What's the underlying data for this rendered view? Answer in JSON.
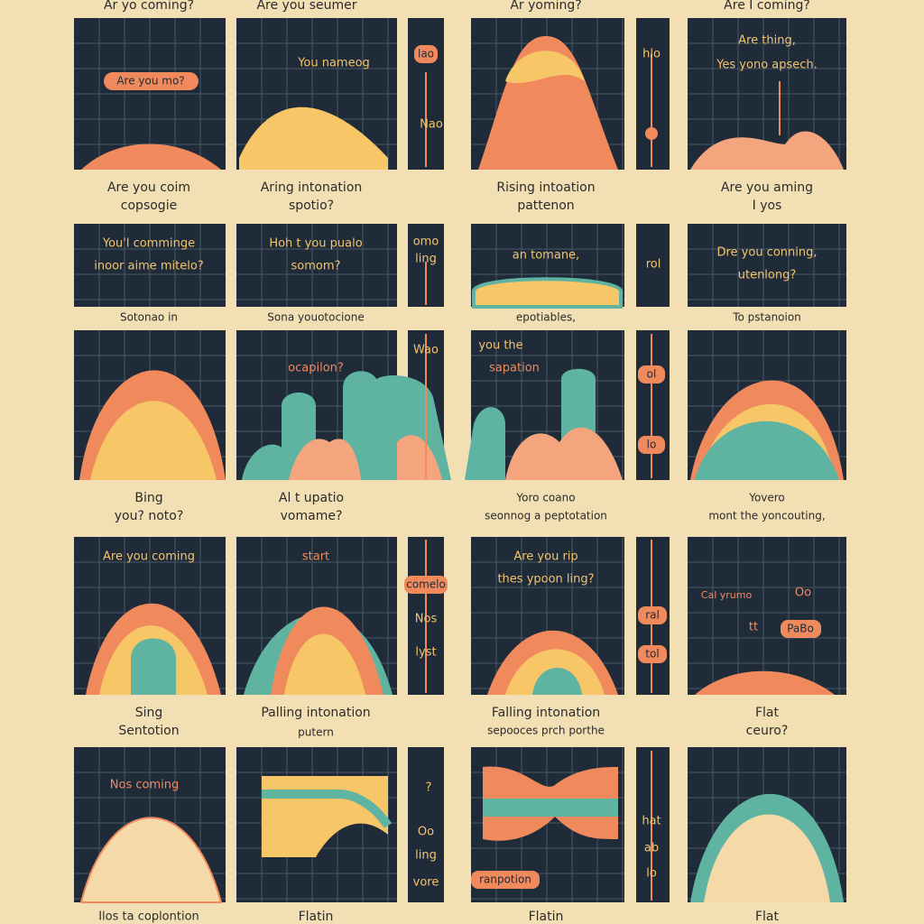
{
  "labels": [
    "Ar yo coming?",
    "Are you seumer",
    "Ar yoming?",
    "Are I coming?",
    "Are you mo?",
    "You nameog",
    "lao",
    "Nao",
    "hlo",
    "Are thing,",
    "Yes yono apsech.",
    "Are you coim",
    "copsogie",
    "Aring intonation",
    "spotio?",
    "Rising intoation",
    "pattenon",
    "Are you aming",
    "I yos",
    "You'l comminge",
    "inoor aime mitelo?",
    "Hoh t you pualo",
    "somom?",
    "omo",
    "ling",
    "an tomane,",
    "rol",
    "Dre you conning,",
    "utenlong?",
    "Sotonao in",
    "Sona youotocione",
    "epotiables,",
    "To pstanoion",
    "ocapilon?",
    "Wao",
    "you the",
    "sapation",
    "ol",
    "lo",
    "Bing",
    "you? noto?",
    "Al t upatio",
    "vomame?",
    "Yoro coano",
    "seonnog a peptotation",
    "Yovero",
    "mont the yoncouting,",
    "Are you coming",
    "start",
    "comelo",
    "Nos",
    "lyst",
    "Are you rip",
    "thes ypoon ling?",
    "ral",
    "tol",
    "Cal yrumo",
    "Oo",
    "PaBo",
    "tt",
    "Sing",
    "Sentotion",
    "Palling intonation",
    "putern",
    "Falling intonation",
    "sepooces prch porthe",
    "Flat",
    "ceuro?",
    "Nos coming",
    "?",
    "Oo",
    "ling",
    "vore",
    "ranpotion",
    "hat",
    "ab",
    "lo",
    "Ilos ta coplontion",
    "Flatin",
    "Flatin",
    "Flat"
  ]
}
